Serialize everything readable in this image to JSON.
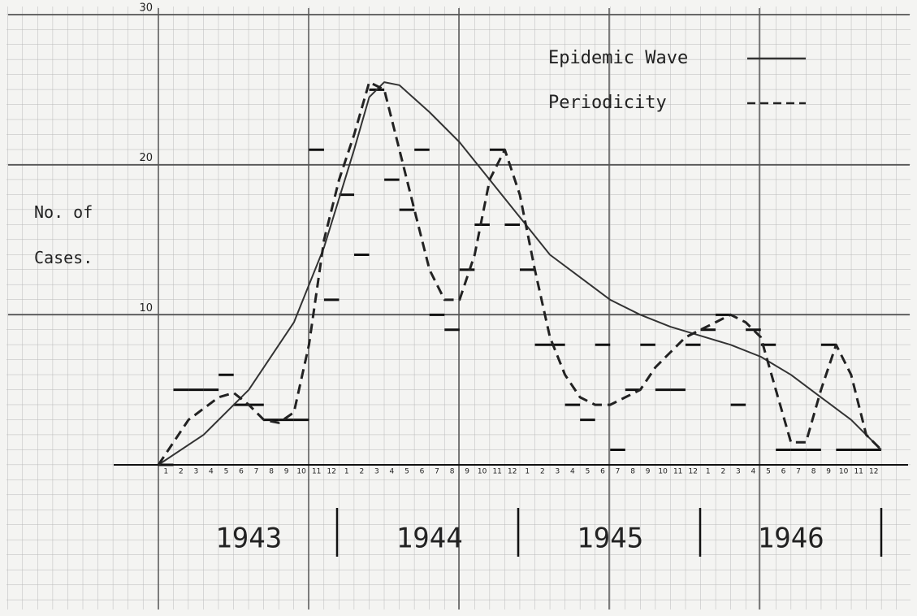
{
  "chart_data": {
    "type": "line",
    "ylabel": "No. of Cases.",
    "ylim": [
      0,
      30
    ],
    "yticks": [
      10,
      20,
      30
    ],
    "xlim": [
      0,
      48
    ],
    "grid": true,
    "categories": [
      "1",
      "2",
      "3",
      "4",
      "5",
      "6",
      "7",
      "8",
      "9",
      "10",
      "11",
      "12",
      "1",
      "2",
      "3",
      "4",
      "5",
      "6",
      "7",
      "8",
      "9",
      "10",
      "11",
      "12",
      "1",
      "2",
      "3",
      "4",
      "5",
      "6",
      "7",
      "8",
      "9",
      "10",
      "11",
      "12",
      "1",
      "2",
      "3",
      "4",
      "5",
      "6",
      "7",
      "8",
      "9",
      "10",
      "11",
      "12"
    ],
    "years": [
      "1943",
      "1944",
      "1945",
      "1946"
    ],
    "monthly_cases": [
      0,
      5,
      5,
      5,
      6,
      4,
      4,
      3,
      3,
      3,
      21,
      11,
      18,
      14,
      25,
      19,
      17,
      21,
      10,
      9,
      13,
      16,
      21,
      16,
      13,
      8,
      8,
      4,
      3,
      8,
      1,
      5,
      8,
      5,
      5,
      8,
      9,
      10,
      4,
      9,
      8,
      1,
      1,
      1,
      8,
      1,
      1,
      1
    ],
    "series": [
      {
        "name": "Epidemic Wave",
        "color": "#333333",
        "dashed": false,
        "x": [
          0,
          3,
          6,
          9,
          11,
          13,
          14,
          15,
          16,
          18,
          20,
          22,
          24,
          26,
          28,
          30,
          32,
          34,
          36,
          38,
          40,
          42,
          44,
          46,
          48
        ],
        "values": [
          0,
          2,
          5,
          9.5,
          14.5,
          21,
          24.5,
          25.5,
          25.3,
          23.5,
          21.5,
          19,
          16.5,
          14,
          12.5,
          11,
          10,
          9.2,
          8.6,
          8,
          7.2,
          6,
          4.5,
          3,
          1
        ]
      },
      {
        "name": "Periodicity",
        "color": "#222222",
        "dashed": true,
        "x": [
          0,
          2,
          4,
          5,
          6,
          7,
          8,
          9,
          10,
          11,
          12,
          13,
          14,
          15,
          16,
          17,
          18,
          19,
          20,
          21,
          22,
          23,
          24,
          25,
          26,
          27,
          28,
          29,
          30,
          31,
          32,
          33,
          34,
          35,
          36,
          37,
          38,
          39,
          40,
          41,
          42,
          43,
          44,
          45,
          46,
          47,
          48
        ],
        "values": [
          0,
          3,
          4.5,
          4.8,
          4,
          3,
          2.8,
          3.5,
          8,
          15,
          19,
          22,
          25.5,
          25,
          21,
          17,
          13,
          11,
          11,
          14,
          19,
          21,
          18,
          13,
          8.5,
          6,
          4.5,
          4,
          4,
          4.5,
          5,
          6.5,
          7.5,
          8.5,
          9,
          9.5,
          10,
          9.5,
          8.5,
          5,
          1.5,
          1.5,
          5,
          8,
          6,
          2,
          1
        ]
      }
    ]
  }
}
